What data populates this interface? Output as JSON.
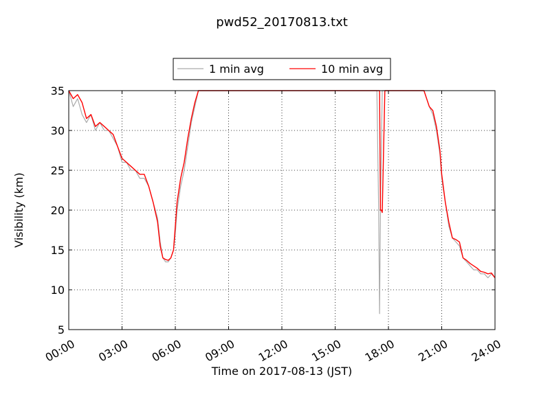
{
  "chart_data": {
    "type": "line",
    "title": "pwd52_20170813.txt",
    "xlabel": "Time on 2017-08-13 (JST)",
    "ylabel": "Visibility (km)",
    "x_unit": "hours",
    "xlim": [
      0,
      24
    ],
    "ylim": [
      5,
      35
    ],
    "x_ticks": [
      0,
      3,
      6,
      9,
      12,
      15,
      18,
      21,
      24
    ],
    "x_tick_labels": [
      "00:00",
      "03:00",
      "06:00",
      "09:00",
      "12:00",
      "15:00",
      "18:00",
      "21:00",
      "24:00"
    ],
    "y_ticks": [
      5,
      10,
      15,
      20,
      25,
      30,
      35
    ],
    "y_tick_labels": [
      "5",
      "10",
      "15",
      "20",
      "25",
      "30",
      "35"
    ],
    "grid": true,
    "legend_position": "top-center",
    "series": [
      {
        "name": "1 min avg",
        "color": "#aaaaaa",
        "x": [
          0,
          0.25,
          0.5,
          0.75,
          1.0,
          1.25,
          1.5,
          1.75,
          2.0,
          2.25,
          2.5,
          2.75,
          3.0,
          3.25,
          3.5,
          3.75,
          4.0,
          4.25,
          4.5,
          4.75,
          5.0,
          5.15,
          5.3,
          5.45,
          5.6,
          5.75,
          5.9,
          6.0,
          6.1,
          6.3,
          6.5,
          6.7,
          6.9,
          7.1,
          7.3,
          7.5,
          7.7,
          8.0,
          9.0,
          12.0,
          15.0,
          17.35,
          17.45,
          17.5,
          17.55,
          17.65,
          17.8,
          20.0,
          20.3,
          20.5,
          20.7,
          20.9,
          21.0,
          21.2,
          21.4,
          21.6,
          21.8,
          22.0,
          22.2,
          22.4,
          22.6,
          22.8,
          23.0,
          23.2,
          23.4,
          23.6,
          23.8,
          24.0
        ],
        "y": [
          35,
          33,
          34,
          32,
          31,
          32,
          30,
          31,
          30,
          30,
          29,
          28,
          26,
          26,
          25,
          25,
          24,
          24,
          23,
          21,
          19,
          16,
          14,
          13.5,
          13.5,
          14,
          15,
          17,
          20,
          23,
          25,
          28,
          31,
          33,
          35,
          35,
          35,
          35,
          35,
          35,
          35,
          35,
          20,
          7,
          20,
          35,
          35,
          35,
          33,
          32,
          30,
          27,
          24,
          21,
          18,
          16.5,
          16,
          15.5,
          14,
          13.5,
          13,
          12.5,
          12.5,
          12,
          12,
          11.5,
          12,
          11.5
        ]
      },
      {
        "name": "10 min avg",
        "color": "#ff0000",
        "x": [
          0,
          0.25,
          0.5,
          0.75,
          1.0,
          1.25,
          1.5,
          1.75,
          2.0,
          2.25,
          2.5,
          2.75,
          3.0,
          3.25,
          3.5,
          3.75,
          4.0,
          4.25,
          4.5,
          4.75,
          5.0,
          5.15,
          5.3,
          5.45,
          5.6,
          5.75,
          5.9,
          6.0,
          6.1,
          6.3,
          6.5,
          6.7,
          6.9,
          7.1,
          7.3,
          7.5,
          7.7,
          8.0,
          9.0,
          12.0,
          15.0,
          17.4,
          17.5,
          17.55,
          17.6,
          17.65,
          17.8,
          20.0,
          20.3,
          20.5,
          20.7,
          20.9,
          21.0,
          21.2,
          21.4,
          21.6,
          21.8,
          22.0,
          22.2,
          22.4,
          22.6,
          22.8,
          23.0,
          23.2,
          23.4,
          23.6,
          23.8,
          24.0
        ],
        "y": [
          35,
          34,
          34.5,
          33.5,
          31.5,
          32,
          30.5,
          31,
          30.5,
          30,
          29.5,
          28,
          26.5,
          26,
          25.5,
          25,
          24.5,
          24.5,
          23,
          21,
          18.5,
          15.5,
          14,
          13.8,
          13.7,
          14,
          15,
          18,
          21,
          24,
          26,
          29,
          31.5,
          33.5,
          35,
          35,
          35,
          35,
          35,
          35,
          35,
          35,
          35,
          20,
          20,
          19.7,
          35,
          35,
          33,
          32.5,
          30.5,
          27.5,
          24.5,
          21,
          18.5,
          16.5,
          16.3,
          16,
          14,
          13.7,
          13.3,
          13,
          12.7,
          12.3,
          12.2,
          12,
          12.1,
          11.5
        ]
      }
    ]
  }
}
